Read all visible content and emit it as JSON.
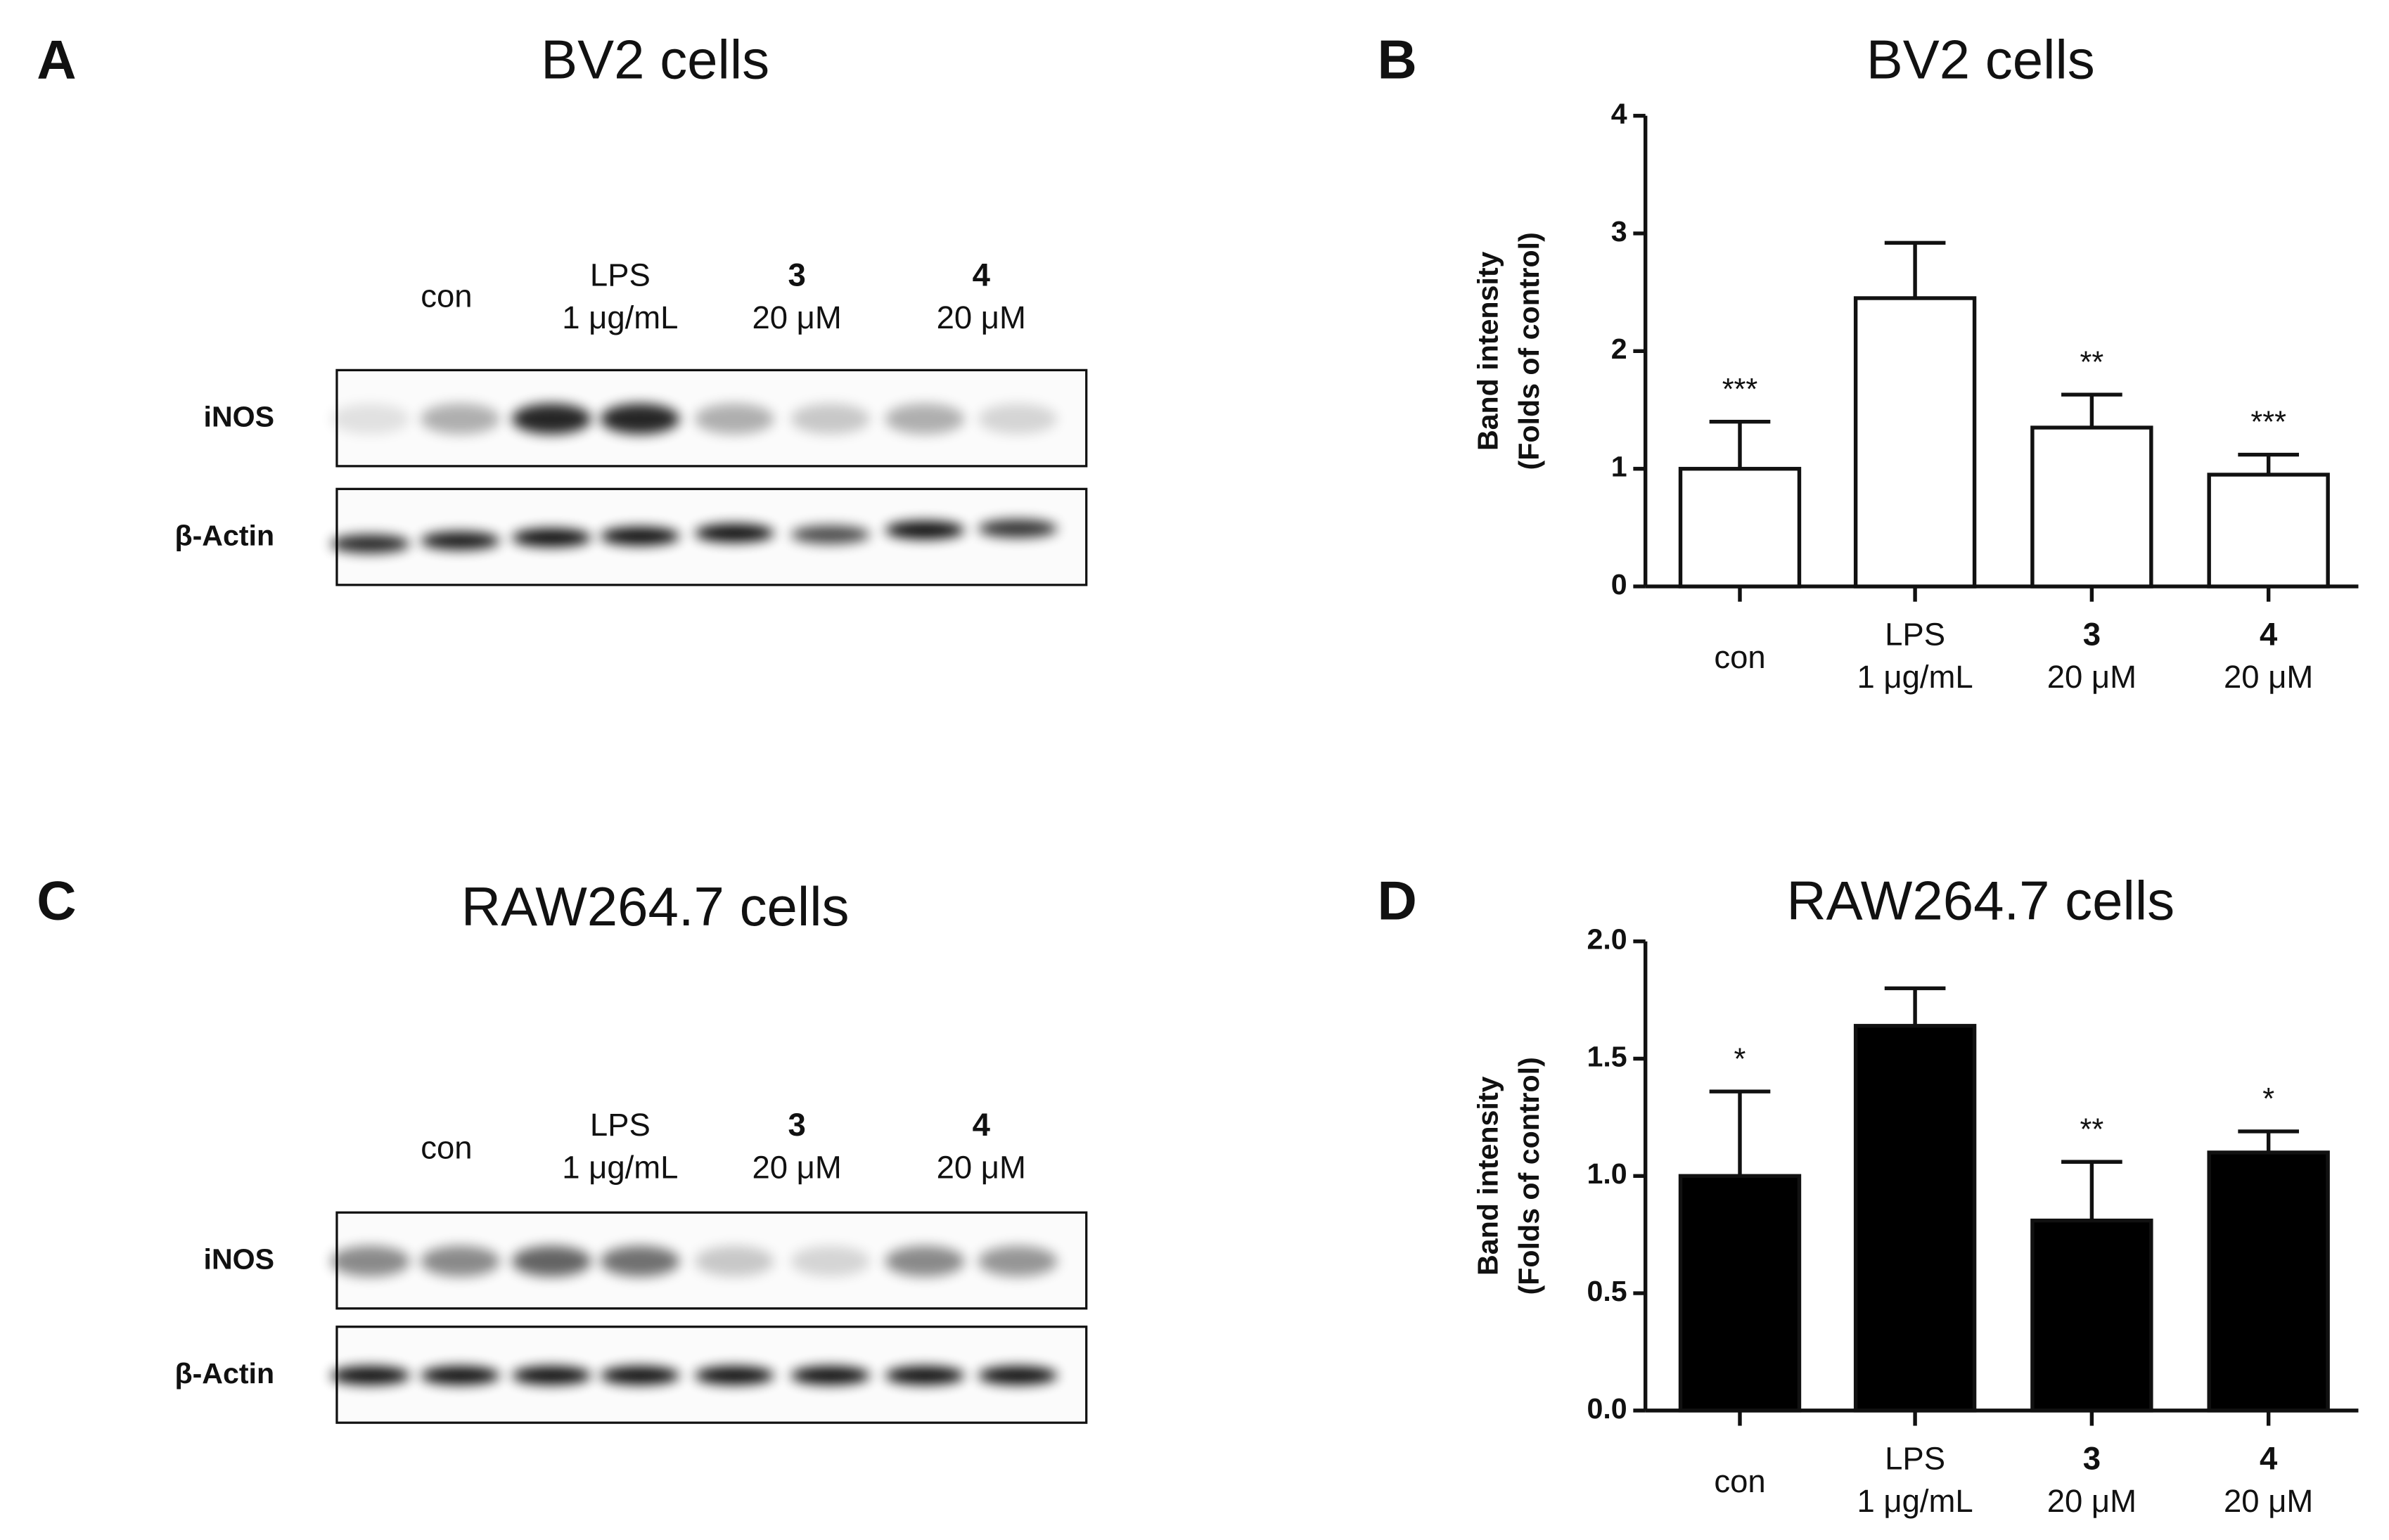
{
  "blots": [
    {
      "panel": "A",
      "title": "BV2 cells",
      "lanes": [
        [
          "con"
        ],
        [
          "LPS",
          "1 μg/mL"
        ],
        [
          "3",
          "20 μM"
        ],
        [
          "4",
          "20 μM"
        ]
      ],
      "rows": [
        "iNOS",
        "β-Actin"
      ]
    },
    {
      "panel": "C",
      "title": "RAW264.7 cells",
      "lanes": [
        [
          "con"
        ],
        [
          "LPS",
          "1 μg/mL"
        ],
        [
          "3",
          "20 μM"
        ],
        [
          "4",
          "20 μM"
        ]
      ],
      "rows": [
        "iNOS",
        "β-Actin"
      ]
    }
  ],
  "chart_data": [
    {
      "type": "bar",
      "panel": "B",
      "title": "BV2 cells",
      "ylabel": [
        "Band intensity",
        "(Folds of control)"
      ],
      "categories": [
        [
          "con"
        ],
        [
          "LPS",
          "1 μg/mL"
        ],
        [
          "3",
          "20 μM"
        ],
        [
          "4",
          "20 μM"
        ]
      ],
      "values": [
        1.0,
        2.45,
        1.35,
        0.95
      ],
      "errors": [
        0.4,
        0.47,
        0.28,
        0.17
      ],
      "annotations": [
        "***",
        null,
        "**",
        "***"
      ],
      "color": "#ffffff",
      "ylim": [
        0,
        4
      ],
      "yticks": [
        0,
        1,
        2,
        3,
        4
      ]
    },
    {
      "type": "bar",
      "panel": "D",
      "title": "RAW264.7 cells",
      "ylabel": [
        "Band intensity",
        "(Folds of control)"
      ],
      "categories": [
        [
          "con"
        ],
        [
          "LPS",
          "1 μg/mL"
        ],
        [
          "3",
          "20 μM"
        ],
        [
          "4",
          "20 μM"
        ]
      ],
      "values": [
        1.0,
        1.64,
        0.81,
        1.1
      ],
      "errors": [
        0.36,
        0.16,
        0.25,
        0.09
      ],
      "annotations": [
        "*",
        null,
        "**",
        "*"
      ],
      "color": "#000000",
      "ylim": [
        0,
        2
      ],
      "yticks": [
        {
          "value": 0,
          "label": "0.0"
        },
        {
          "value": 0.5,
          "label": "0.5"
        },
        {
          "value": 1,
          "label": "1.0"
        },
        {
          "value": 1.5,
          "label": "1.5"
        },
        {
          "value": 2,
          "label": "2.0"
        }
      ]
    }
  ]
}
